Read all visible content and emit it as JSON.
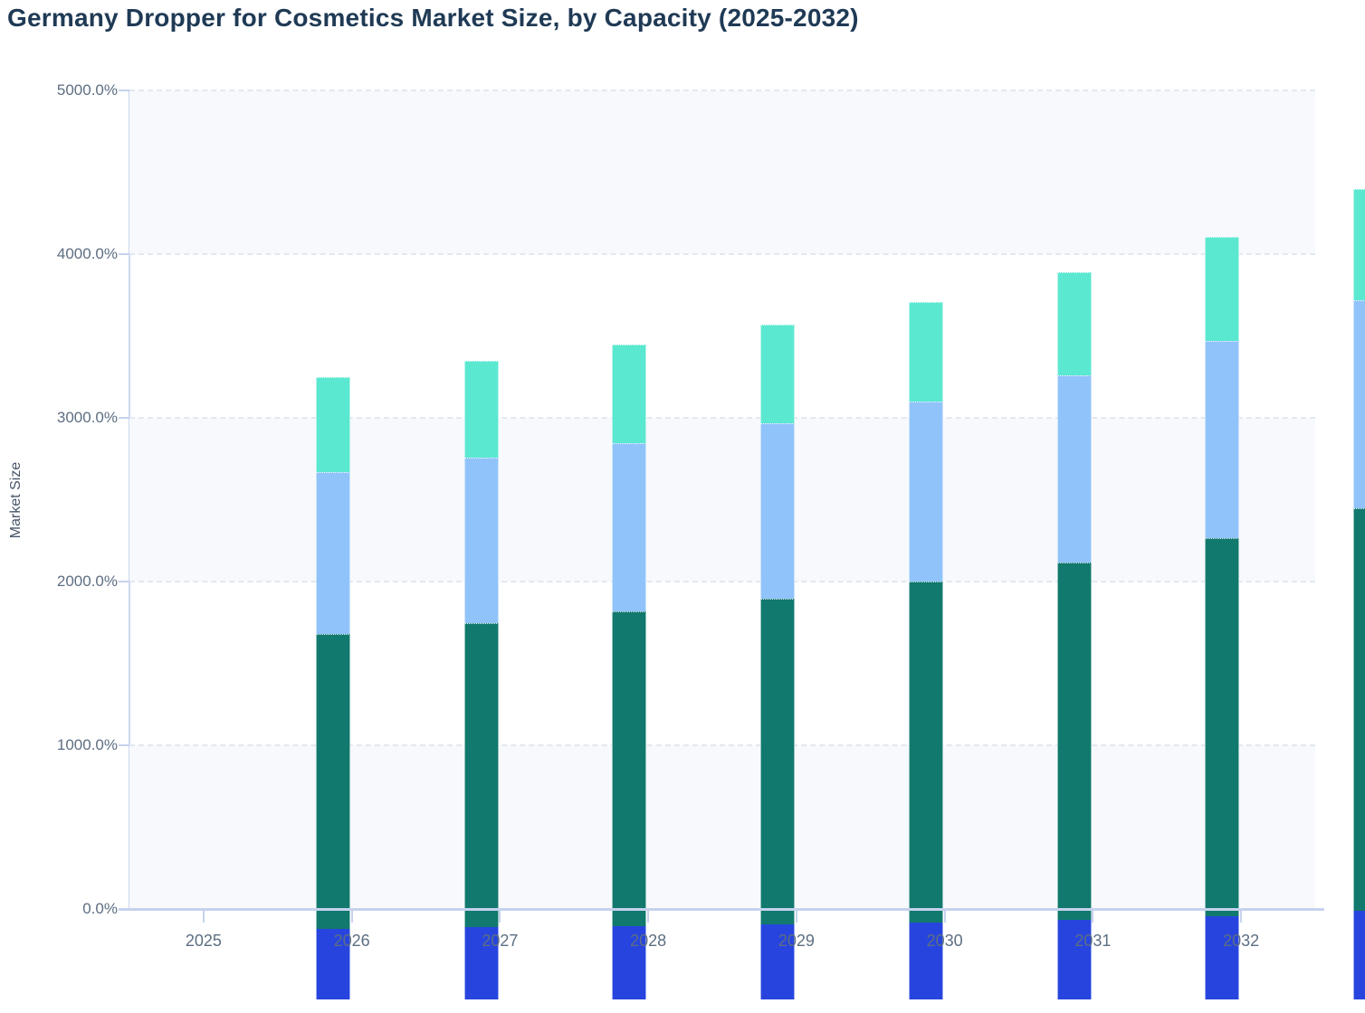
{
  "title": "Germany Dropper for Cosmetics Market Size, by Capacity (2025-2032)",
  "y_axis": {
    "title": "Market Size",
    "tick_labels": [
      "0.0%",
      "1000.0%",
      "2000.0%",
      "3000.0%",
      "4000.0%",
      "5000.0%"
    ]
  },
  "x_axis": {
    "tick_labels": [
      "2025",
      "2026",
      "2027",
      "2028",
      "2029",
      "2030",
      "2031",
      "2032"
    ]
  },
  "chart_data": {
    "type": "bar",
    "stacked": true,
    "title": "Germany Dropper for Cosmetics Market Size, by Capacity (2025-2032)",
    "xlabel": "",
    "ylabel": "Market Size",
    "ylim": [
      0,
      5000
    ],
    "y_tick_step": 1000,
    "y_tick_format": "percent-one-decimal",
    "grid": "horizontal dashed gridlines with alternating shaded bands",
    "legend": "none",
    "categories": [
      "2025",
      "2026",
      "2027",
      "2028",
      "2029",
      "2030",
      "2031",
      "2032"
    ],
    "series": [
      {
        "name": "segment-royal-blue",
        "color": "#2745de",
        "values": [
          430,
          440,
          450,
          460,
          470,
          485,
          510,
          540
        ]
      },
      {
        "name": "segment-teal",
        "color": "#11796d",
        "values": [
          1800,
          1860,
          1920,
          1990,
          2080,
          2185,
          2310,
          2460
        ]
      },
      {
        "name": "segment-light-blue",
        "color": "#90c3fa",
        "values": [
          990,
          1010,
          1030,
          1070,
          1100,
          1140,
          1200,
          1270
        ]
      },
      {
        "name": "segment-mint",
        "color": "#5be8d0",
        "values": [
          580,
          590,
          600,
          600,
          610,
          630,
          640,
          680
        ]
      }
    ],
    "stack_totals": [
      3800,
      3900,
      4000,
      4120,
      4260,
      4440,
      4660,
      4950
    ]
  },
  "colors": {
    "title_text": "#1f3a55",
    "axis_line": "#c6d2ee",
    "gridline": "#e2e8f0",
    "band_fill": "#f7f9fc",
    "tick_label_text": "#5d6e82",
    "axis_title_text": "#475569"
  }
}
